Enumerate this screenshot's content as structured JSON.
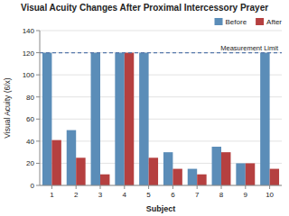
{
  "chart_data": {
    "type": "bar",
    "title": "Visual Acuity Changes After Proximal Intercessory Prayer",
    "xlabel": "Subject",
    "ylabel": "Visual Acuity (6/x)",
    "categories": [
      "1",
      "2",
      "3",
      "4",
      "5",
      "6",
      "7",
      "8",
      "9",
      "10"
    ],
    "series": [
      {
        "name": "Before",
        "color": "#5B8DB8",
        "values": [
          120,
          50,
          120,
          120,
          120,
          30,
          15,
          35,
          20,
          120
        ]
      },
      {
        "name": "After",
        "color": "#B54040",
        "values": [
          41,
          25,
          10,
          120,
          25,
          15,
          10,
          30,
          20,
          15
        ]
      }
    ],
    "ylim": [
      0,
      140
    ],
    "yticks": [
      0,
      20,
      40,
      60,
      80,
      100,
      120,
      140
    ],
    "grid": true,
    "legend": "upper right",
    "annotations": [
      {
        "y": 120,
        "text": "Measurement Limit",
        "line_style": "dashed",
        "color": "#5577AA"
      }
    ]
  }
}
